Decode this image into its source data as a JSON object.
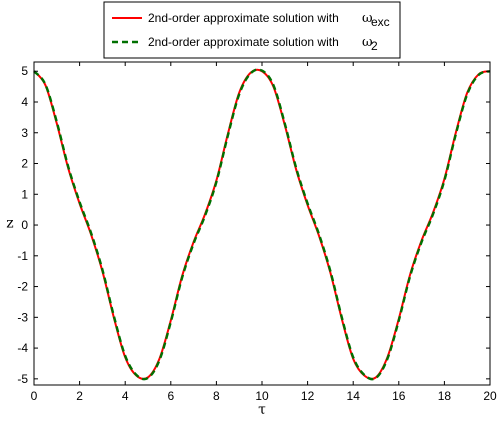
{
  "chart_data": {
    "type": "line",
    "title": "",
    "xlabel": "τ",
    "ylabel": "z",
    "xlim": [
      0,
      20
    ],
    "ylim": [
      -5.2,
      5.3
    ],
    "xticks": [
      0,
      2,
      4,
      6,
      8,
      10,
      12,
      14,
      16,
      18,
      20
    ],
    "yticks": [
      5,
      4,
      3,
      2,
      1,
      0,
      -1,
      -2,
      -3,
      -4,
      -5
    ],
    "xtick_labels": [
      "0",
      "2",
      "4",
      "6",
      "8",
      "10",
      "12",
      "14",
      "16",
      "18",
      "20"
    ],
    "ytick_labels": [
      "5",
      "4",
      "3",
      "2",
      "1",
      "0",
      "-1",
      "-2",
      "-3",
      "-4",
      "-5"
    ],
    "grid": false,
    "legend_position": "top-center",
    "series": [
      {
        "name_main": "2nd-order approximate solution with",
        "name_symbol": "ω",
        "name_subscript": "exc",
        "color": "#ff0000",
        "line_style": "solid",
        "x": [
          0,
          0.5,
          1,
          1.5,
          2,
          2.5,
          3,
          3.5,
          4,
          4.5,
          5,
          5.5,
          6,
          6.5,
          7,
          7.5,
          8,
          8.5,
          9,
          9.5,
          10,
          10.5,
          11,
          11.5,
          12,
          12.5,
          13,
          13.5,
          14,
          14.5,
          15,
          15.5,
          16,
          16.5,
          17,
          17.5,
          18,
          18.5,
          19,
          19.5,
          20
        ],
        "y": [
          5.0,
          4.55,
          3.3,
          1.85,
          0.7,
          -0.3,
          -1.5,
          -3.0,
          -4.3,
          -4.9,
          -4.95,
          -4.35,
          -3.1,
          -1.65,
          -0.55,
          0.35,
          1.45,
          2.95,
          4.3,
          4.95,
          5.0,
          4.5,
          3.25,
          1.8,
          0.65,
          -0.35,
          -1.55,
          -3.05,
          -4.35,
          -4.9,
          -4.95,
          -4.3,
          -3.05,
          -1.6,
          -0.5,
          0.4,
          1.5,
          3.0,
          4.3,
          4.9,
          5.0
        ]
      },
      {
        "name_main": "2nd-order approximate solution with",
        "name_symbol": "ω",
        "name_subscript": "2",
        "color": "#007000",
        "line_style": "dashed",
        "x": [
          0,
          0.5,
          1,
          1.5,
          2,
          2.5,
          3,
          3.5,
          4,
          4.5,
          5,
          5.5,
          6,
          6.5,
          7,
          7.5,
          8,
          8.5,
          9,
          9.5,
          10,
          10.5,
          11,
          11.5,
          12,
          12.5,
          13,
          13.5,
          14,
          14.5,
          15,
          15.5,
          16,
          16.5,
          17,
          17.5,
          18,
          18.5,
          19,
          19.5,
          20
        ],
        "y": [
          5.0,
          4.57,
          3.35,
          1.9,
          0.75,
          -0.25,
          -1.45,
          -2.95,
          -4.25,
          -4.88,
          -4.97,
          -4.4,
          -3.15,
          -1.7,
          -0.6,
          0.3,
          1.4,
          2.9,
          4.25,
          4.93,
          5.02,
          4.55,
          3.3,
          1.85,
          0.7,
          -0.3,
          -1.5,
          -3.0,
          -4.3,
          -4.88,
          -4.97,
          -4.35,
          -3.1,
          -1.65,
          -0.55,
          0.35,
          1.45,
          2.95,
          4.25,
          4.88,
          5.0
        ]
      }
    ]
  }
}
